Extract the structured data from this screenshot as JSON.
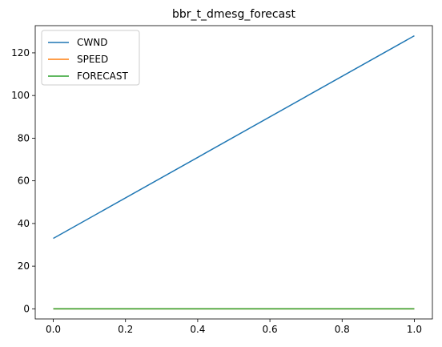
{
  "chart_data": {
    "type": "line",
    "title": "bbr_t_dmesg_forecast",
    "xlabel": "",
    "ylabel": "",
    "xlim": [
      -0.05,
      1.05
    ],
    "ylim": [
      -4.75,
      132.75
    ],
    "xticks": [
      0.0,
      0.2,
      0.4,
      0.6,
      0.8,
      1.0
    ],
    "xtick_labels": [
      "0.0",
      "0.2",
      "0.4",
      "0.6",
      "0.8",
      "1.0"
    ],
    "yticks": [
      0,
      20,
      40,
      60,
      80,
      100,
      120
    ],
    "ytick_labels": [
      "0",
      "20",
      "40",
      "60",
      "80",
      "100",
      "120"
    ],
    "grid": false,
    "legend_position": "upper-left",
    "series": [
      {
        "name": "CWND",
        "color": "#1f77b4",
        "x": [
          0,
          1
        ],
        "y": [
          33,
          128
        ]
      },
      {
        "name": "SPEED",
        "color": "#ff7f0e",
        "x": [
          0,
          1
        ],
        "y": [
          0,
          0
        ]
      },
      {
        "name": "FORECAST",
        "color": "#2ca02c",
        "x": [
          0,
          1
        ],
        "y": [
          0,
          0
        ]
      }
    ]
  }
}
